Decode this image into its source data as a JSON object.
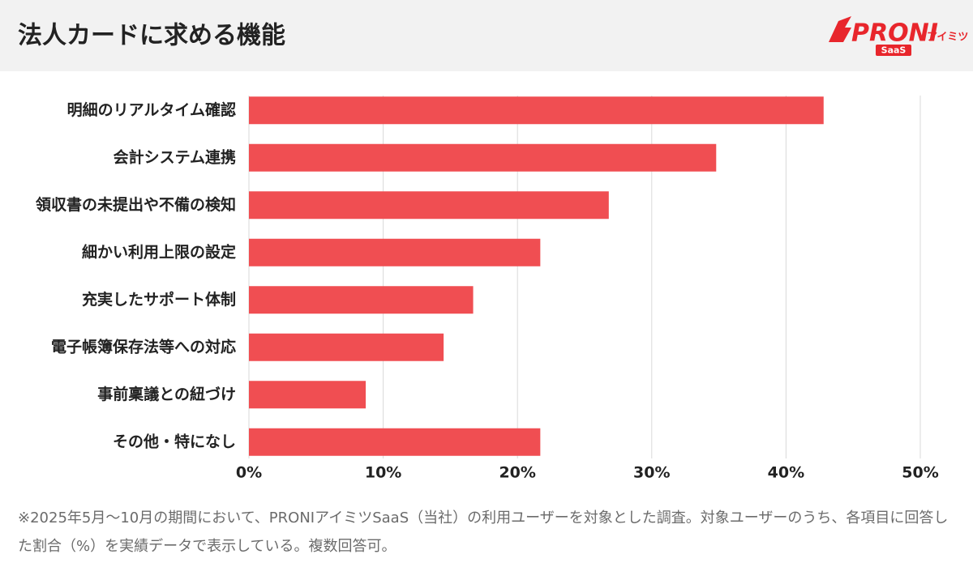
{
  "chart_data": {
    "type": "barh",
    "title": "法人カードに求める機能",
    "categories": [
      "明細のリアルタイム確認",
      "会計システム連携",
      "領収書の未提出や不備の検知",
      "細かい利用上限の設定",
      "充実したサポート体制",
      "電子帳簿保存法等への対応",
      "事前稟議との紐づけ",
      "その他・特になし"
    ],
    "values": [
      42.8,
      34.8,
      26.8,
      21.7,
      16.7,
      14.5,
      8.7,
      21.7
    ],
    "color": "#f04e52",
    "xlim": [
      0,
      50
    ],
    "xticks": [
      {
        "value": 0,
        "label": "0%"
      },
      {
        "value": 10,
        "label": "10%"
      },
      {
        "value": 20,
        "label": "20%"
      },
      {
        "value": 30,
        "label": "30%"
      },
      {
        "value": 40,
        "label": "40%"
      },
      {
        "value": 50,
        "label": "50%"
      }
    ],
    "grid": true,
    "note": "※2025年5月〜10月の期間において、PRONIアイミツSaaS（当社）の利用ユーザーを対象とした調査。対象ユーザーのうち、各項目に回答した割合（%）を実績データで表示している。複数回答可。"
  },
  "logo": {
    "name": "PRONI",
    "sub": "アイミツ",
    "tag": "SaaS"
  }
}
